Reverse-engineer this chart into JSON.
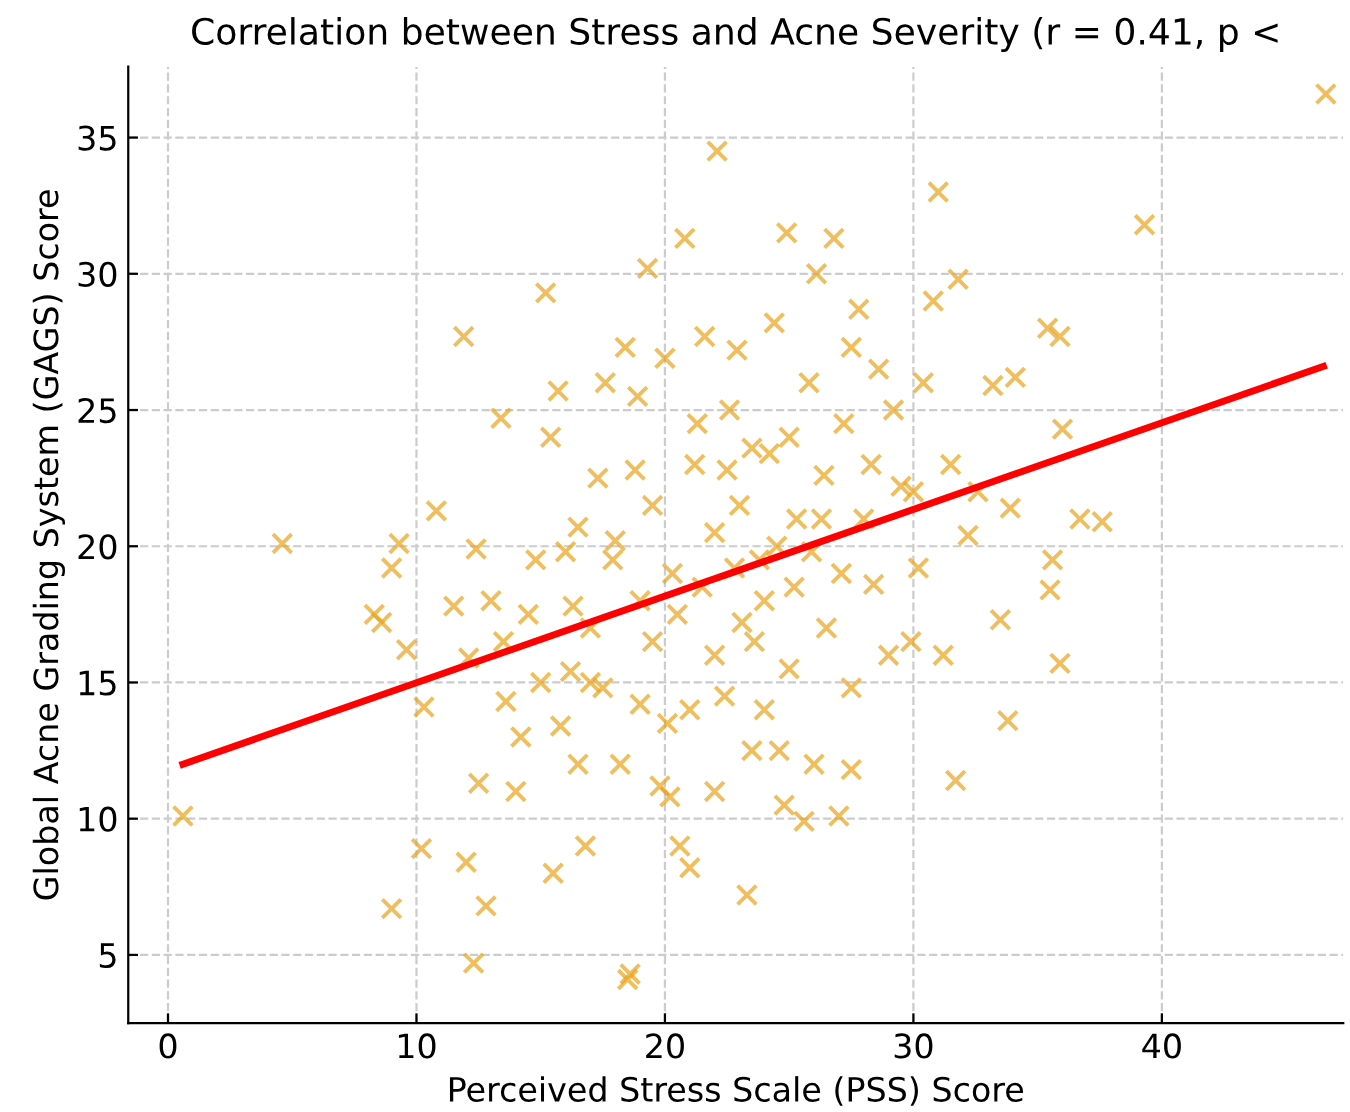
{
  "chart_data": {
    "type": "scatter",
    "title": "Correlation between Stress and Acne Severity (r = 0.41, p <",
    "xlabel": "Perceived Stress Scale (PSS) Score",
    "ylabel": "Global Acne Grading System (GAGS) Score",
    "xlim": [
      -1.6,
      47.3
    ],
    "ylim": [
      2.5,
      37.6
    ],
    "xticks": [
      0,
      10,
      20,
      30,
      40
    ],
    "yticks": [
      5,
      10,
      15,
      20,
      25,
      30,
      35
    ],
    "grid": true,
    "series": [
      {
        "marker": "cross",
        "color": "#e8a31b",
        "x": [
          0.6,
          4.6,
          8.3,
          8.6,
          9.0,
          9.3,
          9.0,
          9.6,
          10.3,
          10.2,
          10.8,
          11.9,
          12.1,
          12.0,
          12.4,
          12.3,
          12.5,
          12.8,
          13.4,
          13.0,
          13.6,
          14.0,
          14.8,
          15.2,
          15.4,
          15.7,
          15.5,
          15.8,
          16.3,
          16.5,
          16.8,
          17.0,
          17.3,
          17.6,
          17.9,
          18.2,
          18.4,
          18.6,
          18.5,
          18.9,
          19.3,
          19.5,
          19.8,
          20.1,
          20.3,
          20.6,
          20.8,
          21.0,
          21.2,
          21.6,
          22.1,
          22.0,
          22.4,
          22.6,
          22.9,
          23.1,
          23.3,
          23.5,
          23.8,
          24.2,
          24.4,
          24.9,
          24.6,
          25.0,
          25.3,
          25.6,
          25.8,
          26.1,
          26.4,
          26.5,
          26.8,
          27.0,
          27.2,
          27.5,
          27.8,
          28.0,
          28.4,
          28.6,
          29.0,
          29.5,
          29.9,
          30.2,
          30.4,
          30.8,
          31.0,
          31.2,
          31.5,
          31.7,
          31.8,
          32.2,
          32.6,
          33.2,
          33.5,
          33.8,
          33.9,
          34.1,
          35.4,
          35.6,
          35.5,
          35.9,
          35.9,
          36.0,
          36.7,
          37.6,
          39.3,
          46.6,
          20.5,
          21.5,
          22.0,
          22.8,
          23.0,
          23.6,
          24.0,
          24.5,
          25.2,
          25.9,
          26.3,
          27.1,
          19.0,
          18.0,
          17.5,
          16.2,
          19.5,
          21.0,
          22.5,
          24.0,
          23.5,
          25.0,
          28.3,
          29.2,
          30.0,
          27.5,
          14.5,
          13.5,
          15.0,
          11.5,
          20.0,
          21.3,
          18.8,
          17.0,
          16.0,
          14.2,
          16.5,
          19.0,
          20.2,
          22.0,
          24.8,
          26.0,
          27.5
        ],
        "values": [
          10.1,
          20.1,
          17.5,
          17.2,
          19.2,
          20.1,
          6.7,
          16.2,
          14.1,
          8.9,
          21.3,
          27.7,
          15.9,
          8.4,
          19.9,
          4.7,
          11.3,
          6.8,
          24.7,
          18.0,
          14.3,
          11.0,
          19.5,
          29.3,
          24.0,
          25.7,
          8.0,
          13.4,
          17.8,
          20.7,
          9.0,
          15.0,
          22.5,
          26.0,
          19.5,
          12.0,
          27.3,
          4.3,
          4.1,
          25.5,
          30.2,
          16.5,
          11.2,
          13.5,
          19.0,
          9.0,
          31.3,
          8.2,
          23.0,
          27.7,
          34.5,
          20.5,
          14.5,
          25.0,
          27.2,
          17.2,
          7.2,
          23.6,
          19.5,
          23.4,
          28.2,
          31.5,
          12.5,
          15.5,
          21.0,
          9.9,
          26.0,
          30.0,
          22.6,
          17.0,
          31.3,
          10.1,
          24.5,
          14.8,
          28.7,
          21.0,
          18.6,
          26.5,
          16.0,
          22.2,
          16.5,
          19.2,
          26.0,
          29.0,
          33.0,
          16.0,
          23.0,
          11.4,
          29.8,
          20.4,
          22.0,
          25.9,
          17.3,
          13.6,
          21.4,
          26.2,
          28.0,
          19.5,
          18.4,
          15.7,
          27.7,
          24.3,
          21.0,
          20.9,
          31.8,
          36.6,
          17.5,
          18.5,
          16.0,
          19.2,
          21.5,
          16.5,
          18.0,
          20.0,
          18.5,
          19.8,
          21.0,
          19.0,
          18.0,
          20.2,
          14.8,
          15.4,
          21.5,
          14.0,
          22.8,
          14.0,
          12.5,
          24.0,
          23.0,
          25.0,
          22.0,
          27.3,
          17.5,
          16.5,
          15.0,
          17.8,
          26.9,
          24.5,
          22.8,
          17.0,
          19.8,
          13.0,
          12.0,
          14.2,
          10.8,
          11.0,
          10.5,
          12.0,
          11.8
        ]
      },
      {
        "type": "line",
        "marker": "none",
        "color": "#ff0000",
        "x": [
          0.6,
          46.5
        ],
        "values": [
          12.0,
          26.6
        ]
      }
    ]
  }
}
